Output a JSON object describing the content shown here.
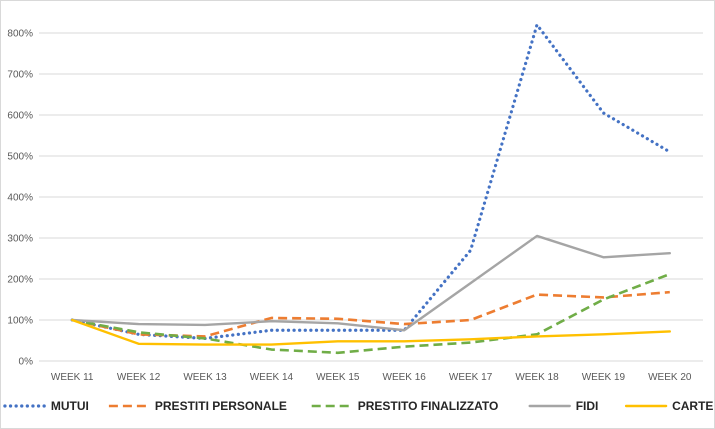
{
  "chart_data": {
    "type": "line",
    "title": "",
    "xlabel": "",
    "ylabel": "",
    "categories": [
      "WEEK 11",
      "WEEK 12",
      "WEEK 13",
      "WEEK 14",
      "WEEK 15",
      "WEEK 16",
      "WEEK 17",
      "WEEK 18",
      "WEEK 19",
      "WEEK 20"
    ],
    "ylim": [
      0,
      800
    ],
    "y_ticks": [
      0,
      100,
      200,
      300,
      400,
      500,
      600,
      700,
      800
    ],
    "y_tick_labels": [
      "0%",
      "100%",
      "200%",
      "300%",
      "400%",
      "500%",
      "600%",
      "700%",
      "800%"
    ],
    "y_unit": "%",
    "grid": true,
    "legend_position": "bottom",
    "series": [
      {
        "name": "MUTUI",
        "color": "#4472C4",
        "style": "dotted",
        "values": [
          100,
          65,
          55,
          75,
          75,
          75,
          270,
          820,
          605,
          510
        ]
      },
      {
        "name": "PRESTITI PERSONALE",
        "color": "#ED7D31",
        "style": "dashed",
        "values": [
          100,
          65,
          60,
          105,
          103,
          90,
          100,
          162,
          155,
          168
        ]
      },
      {
        "name": "PRESTITO FINALIZZATO",
        "color": "#70AD47",
        "style": "dashed",
        "values": [
          100,
          70,
          55,
          28,
          20,
          35,
          45,
          65,
          150,
          212
        ]
      },
      {
        "name": "FIDI",
        "color": "#A5A5A5",
        "style": "solid",
        "values": [
          100,
          90,
          88,
          97,
          92,
          75,
          190,
          305,
          253,
          263
        ]
      },
      {
        "name": "CARTE",
        "color": "#FFC000",
        "style": "solid",
        "values": [
          100,
          42,
          40,
          40,
          48,
          48,
          53,
          60,
          65,
          72
        ]
      }
    ]
  }
}
